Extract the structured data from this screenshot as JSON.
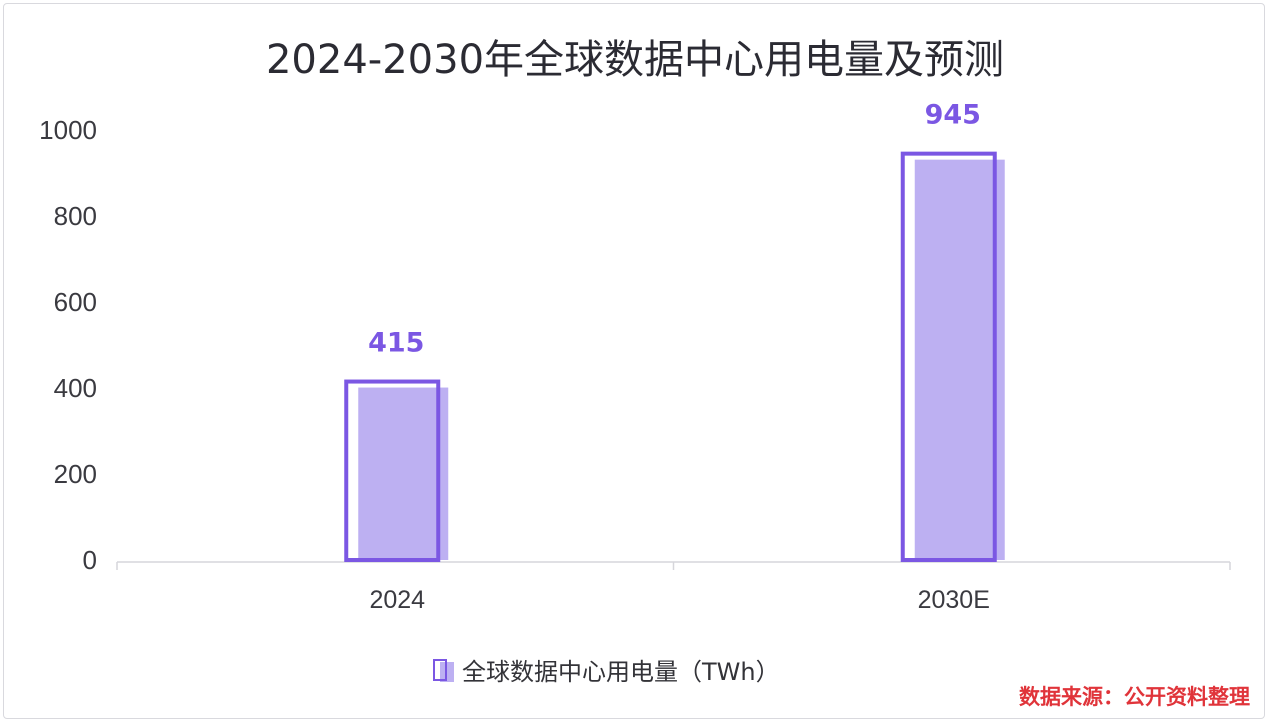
{
  "chart_data": {
    "type": "bar",
    "title": "2024-2030年全球数据中心用电量及预测",
    "categories": [
      "2024",
      "2030E"
    ],
    "series": [
      {
        "name": "全球数据中心用电量（TWh）",
        "values": [
          415,
          945
        ]
      }
    ],
    "data_labels": [
      "415",
      "945"
    ],
    "y_ticks": [
      "0",
      "200",
      "400",
      "600",
      "800",
      "1000"
    ],
    "ylim": [
      0,
      1000
    ],
    "grid": false,
    "legend_position": "bottom",
    "xlabel": "",
    "ylabel": ""
  },
  "source_note": "数据来源：公开资料整理",
  "colors": {
    "bar_fill": "#bdb0f2",
    "bar_outline": "#7b57e3",
    "data_label": "#7b57e3",
    "axis_line": "#d6d6db",
    "source_text": "#e0343a"
  }
}
